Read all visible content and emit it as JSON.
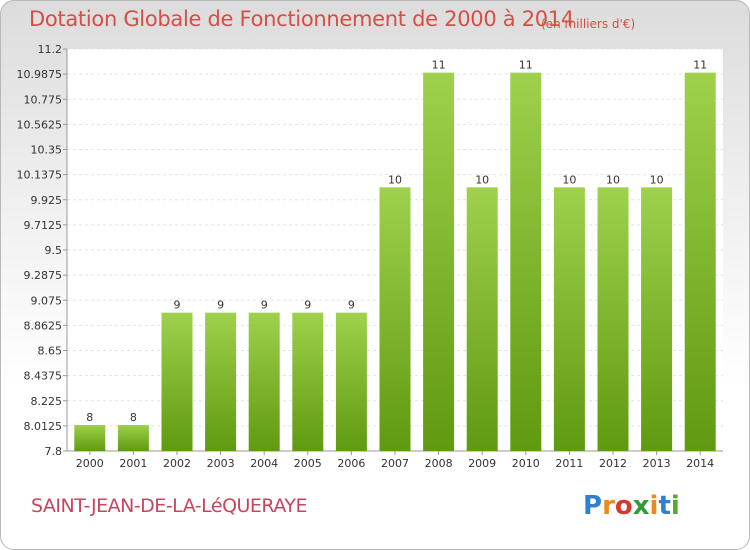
{
  "title": "Dotation Globale de Fonctionnement de 2000 à 2014",
  "subtitle": "(en milliers d'€)",
  "commune": "SAINT-JEAN-DE-LA-LéQUERAYE",
  "logo": {
    "text": "Proxiti",
    "colors": [
      "#2f7fd2",
      "#e88a1c",
      "#d43a2d",
      "#2f9b3a",
      "#e88a1c",
      "#2f7fd2",
      "#5aa82b"
    ]
  },
  "colors": {
    "bar_top": "#9fd14c",
    "bar_bottom": "#5f9a10",
    "title": "#d54f44",
    "commune": "#c7455d"
  },
  "chart_data": {
    "type": "bar",
    "categories": [
      "2000",
      "2001",
      "2002",
      "2003",
      "2004",
      "2005",
      "2006",
      "2007",
      "2008",
      "2009",
      "2010",
      "2011",
      "2012",
      "2013",
      "2014"
    ],
    "values": [
      8,
      8,
      9,
      9,
      9,
      9,
      9,
      10,
      11,
      10,
      11,
      10,
      10,
      10,
      11
    ],
    "value_labels": [
      "8",
      "8",
      "9",
      "9",
      "9",
      "9",
      "9",
      "10",
      "11",
      "10",
      "11",
      "10",
      "10",
      "10",
      "11"
    ],
    "bar_values": [
      8.02,
      8.02,
      8.97,
      8.97,
      8.97,
      8.97,
      8.97,
      10.03,
      11.0,
      10.03,
      11.0,
      10.03,
      10.03,
      10.03,
      11.0
    ],
    "ylim": [
      7.8,
      11.2
    ],
    "yticks": [
      "7.8",
      "8.0125",
      "8.225",
      "8.4375",
      "8.65",
      "8.8625",
      "9.075",
      "9.2875",
      "9.5",
      "9.7125",
      "9.925",
      "10.1375",
      "10.35",
      "10.5625",
      "10.775",
      "10.9875",
      "11.2"
    ],
    "grid": true,
    "xlabel": "",
    "ylabel": ""
  }
}
